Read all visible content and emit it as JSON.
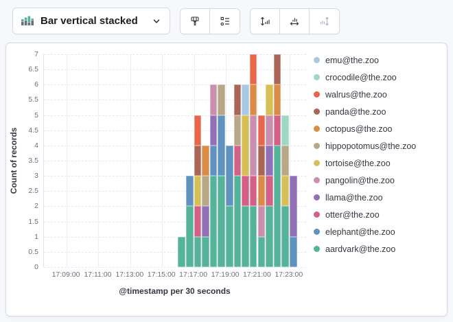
{
  "toolbar": {
    "chart_type_label": "Bar vertical stacked",
    "icons": {
      "dropdown_left": "stacked-bar-chart-icon",
      "dropdown_right": "chevron-down-icon",
      "group_style": [
        "brush-icon",
        "list-settings-icon"
      ],
      "group_axes": [
        "left-axis-icon",
        "bottom-axis-icon",
        "right-axis-icon"
      ],
      "right_axis_disabled": true
    },
    "icon_colors": {
      "bar_green": "#54B399",
      "bar_gray": "#69707D",
      "enabled": "#343741",
      "disabled": "#A9B3C6"
    }
  },
  "chart_data": {
    "type": "bar",
    "stacked": true,
    "orientation": "vertical",
    "xlabel": "@timestamp per 30 seconds",
    "ylabel": "Count of records",
    "ylim": [
      0,
      7
    ],
    "grid": {
      "horizontal": "dashed",
      "vertical": "solid"
    },
    "legend_position": "right",
    "y_tick_labels": [
      "0",
      "0.5",
      "1",
      "1.5",
      "2",
      "2.5",
      "3",
      "3.5",
      "4",
      "4.5",
      "5",
      "5.5",
      "6",
      "6.5",
      "7"
    ],
    "x_tick_labels": [
      "17:09:00",
      "17:11:00",
      "17:13:00",
      "17:15:00",
      "17:17:00",
      "17:19:00",
      "17:21:00",
      "17:23:00"
    ],
    "categories": [
      "17:16:00",
      "17:16:30",
      "17:17:00",
      "17:17:30",
      "17:18:00",
      "17:18:30",
      "17:19:00",
      "17:19:30",
      "17:20:00",
      "17:20:30",
      "17:21:00",
      "17:21:30",
      "17:22:00",
      "17:22:30",
      "17:23:00"
    ],
    "stack_order": "bottom-to-top",
    "series": [
      {
        "name": "aardvark@the.zoo",
        "color": "#54B399",
        "values": [
          1,
          2,
          1,
          1,
          3,
          3,
          2,
          3,
          2,
          2,
          1,
          2,
          4,
          2,
          0
        ]
      },
      {
        "name": "elephant@the.zoo",
        "color": "#6092C0",
        "values": [
          0,
          1,
          0,
          0,
          1,
          2,
          2,
          0,
          0,
          0,
          0,
          0,
          0,
          0,
          1
        ]
      },
      {
        "name": "otter@the.zoo",
        "color": "#D36086",
        "values": [
          0,
          0,
          1,
          0,
          0,
          0,
          0,
          1,
          1,
          1,
          0,
          1,
          1,
          0,
          0
        ]
      },
      {
        "name": "llama@the.zoo",
        "color": "#9170B8",
        "values": [
          0,
          0,
          0,
          1,
          1,
          0,
          0,
          0,
          0,
          0,
          0,
          1,
          0,
          0,
          2
        ]
      },
      {
        "name": "pangolin@the.zoo",
        "color": "#CA8EAE",
        "values": [
          0,
          0,
          0,
          0,
          1,
          0,
          0,
          0,
          0,
          2,
          1,
          1,
          0,
          0,
          0
        ]
      },
      {
        "name": "tortoise@the.zoo",
        "color": "#D6BF57",
        "values": [
          0,
          0,
          1,
          0,
          0,
          0,
          0,
          0,
          2,
          0,
          0,
          1,
          0,
          1,
          0
        ]
      },
      {
        "name": "hippopotomus@the.zoo",
        "color": "#B9A888",
        "values": [
          0,
          0,
          0,
          1,
          0,
          1,
          0,
          1,
          0,
          0,
          0,
          0,
          0,
          1,
          0
        ]
      },
      {
        "name": "octopus@the.zoo",
        "color": "#DA8B45",
        "values": [
          0,
          0,
          0,
          1,
          0,
          0,
          0,
          0,
          0,
          1,
          1,
          0,
          1,
          0,
          0
        ]
      },
      {
        "name": "panda@the.zoo",
        "color": "#AA6556",
        "values": [
          0,
          0,
          1,
          0,
          0,
          0,
          0,
          1,
          0,
          0,
          1,
          0,
          1,
          0,
          0
        ]
      },
      {
        "name": "walrus@the.zoo",
        "color": "#E7664C",
        "values": [
          0,
          0,
          1,
          0,
          0,
          0,
          0,
          0,
          0,
          1,
          1,
          0,
          0,
          0,
          0
        ]
      },
      {
        "name": "crocodile@the.zoo",
        "color": "#9DD8C5",
        "values": [
          0,
          0,
          0,
          0,
          0,
          0,
          0,
          0,
          0,
          0,
          0,
          0,
          0,
          1,
          0
        ]
      },
      {
        "name": "emu@the.zoo",
        "color": "#A8C9E4",
        "values": [
          0,
          0,
          0,
          0,
          0,
          0,
          0,
          0,
          1,
          0,
          0,
          0,
          0,
          0,
          0
        ]
      }
    ]
  }
}
